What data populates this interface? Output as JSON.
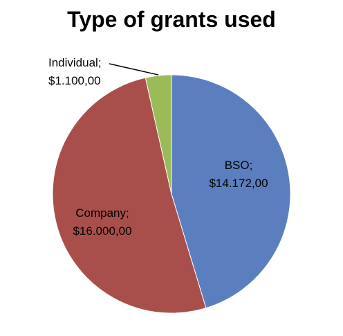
{
  "chart_data": {
    "type": "pie",
    "title": "Type of grants used",
    "slices": [
      {
        "name": "BSO",
        "value": 14172,
        "label_line1": "BSO;",
        "label_line2": "$14.172,00",
        "color": "#5B7FBE"
      },
      {
        "name": "Company",
        "value": 16000,
        "label_line1": "Company;",
        "label_line2": "$16.000,00",
        "color": "#A94F4B"
      },
      {
        "name": "Individual",
        "value": 1100,
        "label_line1": "Individual;",
        "label_line2": "$1.100,00",
        "color": "#9BBB59"
      }
    ],
    "start_angle_deg": 0,
    "direction": "clockwise",
    "legend": "none"
  }
}
